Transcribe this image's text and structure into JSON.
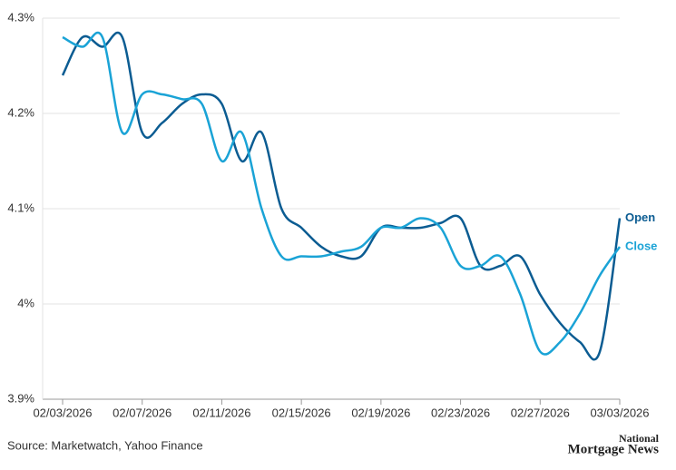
{
  "chart_data": {
    "type": "line",
    "source": "Source: Marketwatch, Yahoo Finance",
    "logo": [
      "National",
      "Mortgage News"
    ],
    "x": [
      "02/03/2026",
      "02/04/2026",
      "02/05/2026",
      "02/06/2026",
      "02/07/2026",
      "02/08/2026",
      "02/09/2026",
      "02/10/2026",
      "02/11/2026",
      "02/12/2026",
      "02/13/2026",
      "02/14/2026",
      "02/15/2026",
      "02/16/2026",
      "02/17/2026",
      "02/18/2026",
      "02/19/2026",
      "02/20/2026",
      "02/21/2026",
      "02/22/2026",
      "02/23/2026",
      "02/24/2026",
      "02/25/2026",
      "02/26/2026",
      "02/27/2026",
      "02/28/2026",
      "03/01/2026",
      "03/02/2026",
      "03/03/2026"
    ],
    "series": [
      {
        "name": "Open",
        "color": "#0b5c92",
        "values": [
          4.24,
          4.28,
          4.27,
          4.28,
          4.18,
          4.19,
          4.21,
          4.22,
          4.21,
          4.15,
          4.18,
          4.1,
          4.08,
          4.06,
          4.05,
          4.05,
          4.08,
          4.08,
          4.08,
          4.085,
          4.09,
          4.04,
          4.04,
          4.05,
          4.01,
          3.98,
          3.96,
          3.95,
          4.09
        ]
      },
      {
        "name": "Close",
        "color": "#1aa3d6",
        "values": [
          4.28,
          4.27,
          4.28,
          4.18,
          4.22,
          4.22,
          4.215,
          4.21,
          4.15,
          4.18,
          4.1,
          4.05,
          4.05,
          4.05,
          4.055,
          4.06,
          4.08,
          4.08,
          4.09,
          4.08,
          4.04,
          4.04,
          4.05,
          4.01,
          3.95,
          3.96,
          3.99,
          4.03,
          4.06
        ]
      }
    ],
    "xticks": [
      "02/03/2026",
      "02/07/2026",
      "02/11/2026",
      "02/15/2026",
      "02/19/2026",
      "02/23/2026",
      "02/27/2026",
      "03/03/2026"
    ],
    "ylim": [
      3.9,
      4.3
    ],
    "yticks": [
      {
        "value": 3.9,
        "label": "3.9%"
      },
      {
        "value": 4,
        "label": "4%"
      },
      {
        "value": 4.1,
        "label": "4.1%"
      },
      {
        "value": 4.2,
        "label": "4.2%"
      },
      {
        "value": 4.3,
        "label": "4.3%"
      }
    ],
    "grid": true
  }
}
